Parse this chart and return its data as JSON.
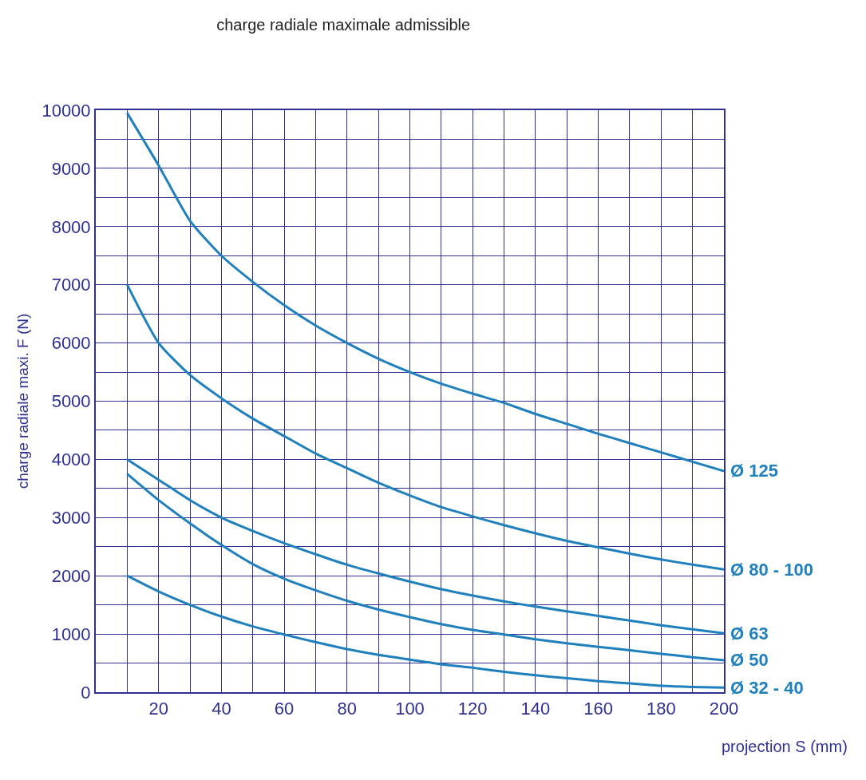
{
  "chart_data": {
    "type": "line",
    "title": "charge radiale maximale admissible",
    "xlabel": "projection S (mm)",
    "ylabel": "charge radiale maxi. F (N)",
    "x": [
      10,
      20,
      30,
      40,
      50,
      60,
      70,
      80,
      90,
      100,
      110,
      120,
      130,
      140,
      150,
      160,
      170,
      180,
      190,
      200
    ],
    "series": [
      {
        "name": "Ø 125",
        "color": "#1f80bd",
        "values": [
          9950,
          9050,
          8100,
          7500,
          7050,
          6650,
          6300,
          6000,
          5730,
          5500,
          5300,
          5130,
          4970,
          4780,
          4610,
          4440,
          4280,
          4120,
          3960,
          3800
        ]
      },
      {
        "name": "Ø 80 - 100",
        "color": "#1f80bd",
        "values": [
          7000,
          6000,
          5450,
          5050,
          4700,
          4400,
          4100,
          3850,
          3600,
          3380,
          3180,
          3020,
          2870,
          2730,
          2600,
          2490,
          2380,
          2280,
          2190,
          2110
        ]
      },
      {
        "name": "Ø 63",
        "color": "#1f80bd",
        "values": [
          4000,
          3650,
          3300,
          3000,
          2770,
          2560,
          2370,
          2190,
          2040,
          1900,
          1770,
          1660,
          1560,
          1470,
          1390,
          1310,
          1230,
          1150,
          1080,
          1010
        ]
      },
      {
        "name": "Ø 50",
        "color": "#1f80bd",
        "values": [
          3750,
          3300,
          2900,
          2530,
          2200,
          1950,
          1750,
          1570,
          1420,
          1290,
          1170,
          1070,
          990,
          910,
          840,
          780,
          720,
          660,
          600,
          550
        ]
      },
      {
        "name": "Ø 32 - 40",
        "color": "#1f80bd",
        "values": [
          2000,
          1730,
          1500,
          1300,
          1130,
          990,
          860,
          740,
          640,
          560,
          480,
          420,
          350,
          290,
          240,
          190,
          150,
          110,
          90,
          80
        ]
      }
    ],
    "xlim": [
      0,
      200
    ],
    "xticks": [
      {
        "value": 10,
        "label": null
      },
      20,
      {
        "value": 30,
        "label": null
      },
      40,
      {
        "value": 50,
        "label": null
      },
      60,
      {
        "value": 70,
        "label": null
      },
      80,
      {
        "value": 90,
        "label": null
      },
      100,
      {
        "value": 110,
        "label": null
      },
      120,
      {
        "value": 130,
        "label": null
      },
      140,
      {
        "value": 150,
        "label": null
      },
      160,
      {
        "value": 170,
        "label": null
      },
      180,
      {
        "value": 190,
        "label": null
      },
      200
    ],
    "ylim": [
      0,
      10000
    ],
    "yticks": [
      0,
      {
        "value": 500,
        "label": null
      },
      1000,
      {
        "value": 1500,
        "label": null
      },
      2000,
      {
        "value": 2500,
        "label": null
      },
      3000,
      {
        "value": 3500,
        "label": null
      },
      4000,
      {
        "value": 4500,
        "label": null
      },
      5000,
      {
        "value": 5500,
        "label": null
      },
      6000,
      {
        "value": 6500,
        "label": null
      },
      7000,
      {
        "value": 7500,
        "label": null
      },
      8000,
      {
        "value": 8500,
        "label": null
      },
      9000,
      {
        "value": 9500,
        "label": null
      },
      10000
    ],
    "grid": true,
    "legend": false,
    "marker": "none",
    "line_style": "solid"
  }
}
